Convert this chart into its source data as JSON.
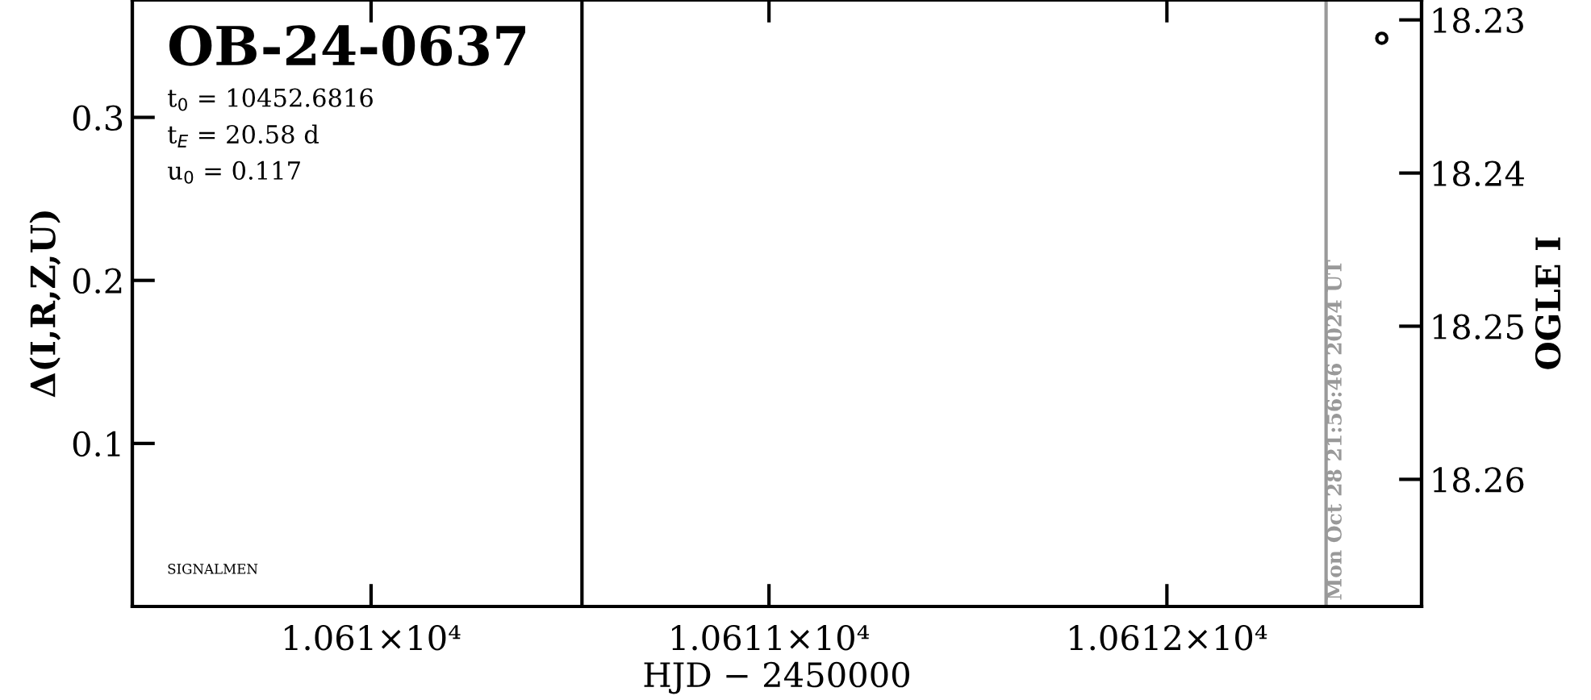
{
  "chart_data": {
    "type": "scatter",
    "title": "OB-24-0637",
    "xlabel": "HJD − 2450000",
    "ylabel": "Δ(I,R,Z,U)",
    "y2label": "OGLE I",
    "annotations": [
      "t$_{0}$ = 10452.6816",
      "t$_{E}$ = 20.58 d",
      "u$_{0}$ = 0.117",
      "SIGNALMEN",
      "Mon Oct 28 21:56:46 2024 UT"
    ],
    "xlim": [
      10609.4,
      10612.64
    ],
    "xticks": [
      {
        "value": 10610,
        "label": "1.061×10⁴"
      },
      {
        "value": 10611,
        "label": "1.0611×10⁴"
      },
      {
        "value": 10612,
        "label": "1.0612×10⁴"
      }
    ],
    "ylim": [
      0.0,
      0.372
    ],
    "yticks": [
      0.1,
      0.2,
      0.3
    ],
    "y2lim": [
      18.2683,
      18.2287
    ],
    "y2ticks": [
      18.23,
      18.24,
      18.25,
      18.26
    ],
    "series": [
      {
        "color": "#000000",
        "x": [
          10612.54
        ],
        "values": [
          18.2312
        ],
        "axis": "y2"
      }
    ],
    "marker": "circle",
    "ref_lines": [
      {
        "axis": "x",
        "value": 10610.53,
        "color": "#000000"
      },
      {
        "axis": "x",
        "value": 10612.4,
        "color": "#999999"
      }
    ],
    "grid": false,
    "legend": false
  }
}
